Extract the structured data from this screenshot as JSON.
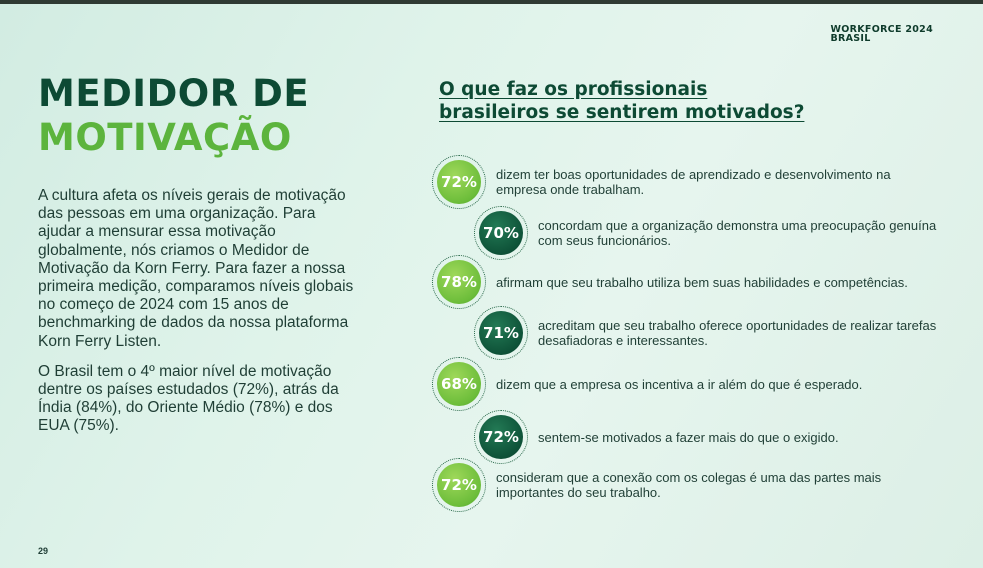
{
  "header": {
    "brand_line1": "WORKFORCE 2024",
    "brand_line2": "BRASIL"
  },
  "title": {
    "line1": "MEDIDOR DE",
    "line2": "MOTIVAÇÃO"
  },
  "body": {
    "paragraph1": "A cultura afeta os níveis gerais de motivação das pessoas em uma organização. Para ajudar a mensurar essa motivação globalmente, nós criamos o Medidor de Motivação da Korn Ferry. Para fazer a nossa primeira medição, comparamos níveis globais no começo de 2024 com 15 anos de benchmarking de dados da nossa plataforma Korn Ferry Listen.",
    "paragraph2": "O Brasil tem o 4º maior nível de motivação dentre os países estudados (72%), atrás da Índia (84%), do Oriente Médio (78%) e dos EUA (75%)."
  },
  "question": {
    "line1": "O que faz os profissionais",
    "line2": "brasileiros se sentirem motivados?"
  },
  "stats": [
    {
      "value": "72%",
      "text": "dizem ter boas oportunidades de aprendizado e desenvolvimento na empresa onde trabalham."
    },
    {
      "value": "70%",
      "text": "concordam que a organização demonstra uma preocupação genuína com seus funcionários."
    },
    {
      "value": "78%",
      "text": "afirmam que seu trabalho utiliza bem suas habilidades e competências."
    },
    {
      "value": "71%",
      "text": "acreditam que seu trabalho oferece oportunidades de realizar tarefas desafiadoras e interessantes."
    },
    {
      "value": "68%",
      "text": "dizem que a empresa os incentiva a ir além do que é esperado."
    },
    {
      "value": "72%",
      "text": "sentem-se motivados a fazer mais do que o exigido."
    },
    {
      "value": "72%",
      "text": "consideram que a conexão com os colegas é uma das partes mais importantes do seu trabalho."
    }
  ],
  "footer": {
    "page_number": "29"
  },
  "colors": {
    "dark_green": "#0d4a34",
    "light_green": "#5cb43d",
    "background": "#dff3ea"
  }
}
